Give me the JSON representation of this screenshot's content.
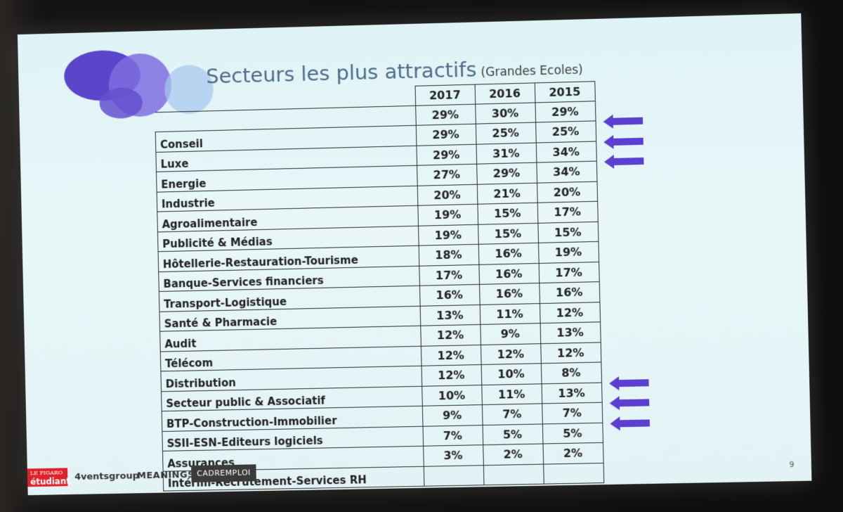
{
  "slide": {
    "title": "Secteurs les plus attractifs",
    "subtitle": "(Grandes Ecoles)",
    "page_number": "9"
  },
  "table": {
    "years": [
      "2017",
      "2016",
      "2015"
    ],
    "top_values": [
      "29%",
      "30%",
      "29%"
    ],
    "rows": [
      {
        "label": "Conseil",
        "values": [
          "29%",
          "25%",
          "25%"
        ],
        "arrow": true
      },
      {
        "label": "Luxe",
        "values": [
          "29%",
          "31%",
          "34%"
        ],
        "arrow": true
      },
      {
        "label": "Energie",
        "values": [
          "27%",
          "29%",
          "34%"
        ],
        "arrow": true
      },
      {
        "label": "Industrie",
        "values": [
          "20%",
          "21%",
          "20%"
        ],
        "arrow": false
      },
      {
        "label": "Agroalimentaire",
        "values": [
          "19%",
          "15%",
          "17%"
        ],
        "arrow": false
      },
      {
        "label": "Publicité & Médias",
        "values": [
          "19%",
          "15%",
          "15%"
        ],
        "arrow": false
      },
      {
        "label": "Hôtellerie-Restauration-Tourisme",
        "values": [
          "18%",
          "16%",
          "19%"
        ],
        "arrow": false
      },
      {
        "label": "Banque-Services financiers",
        "values": [
          "17%",
          "16%",
          "17%"
        ],
        "arrow": false
      },
      {
        "label": "Transport-Logistique",
        "values": [
          "16%",
          "16%",
          "16%"
        ],
        "arrow": false
      },
      {
        "label": "Santé & Pharmacie",
        "values": [
          "13%",
          "11%",
          "12%"
        ],
        "arrow": false
      },
      {
        "label": "Audit",
        "values": [
          "12%",
          "9%",
          "13%"
        ],
        "arrow": false
      },
      {
        "label": "Télécom",
        "values": [
          "12%",
          "12%",
          "12%"
        ],
        "arrow": false
      },
      {
        "label": "Distribution",
        "values": [
          "12%",
          "10%",
          "8%"
        ],
        "arrow": false
      },
      {
        "label": "Secteur public & Associatif",
        "values": [
          "10%",
          "11%",
          "13%"
        ],
        "arrow": true
      },
      {
        "label": "BTP-Construction-Immobilier",
        "values": [
          "9%",
          "7%",
          "7%"
        ],
        "arrow": true
      },
      {
        "label": "SSII-ESN-Editeurs logiciels",
        "values": [
          "7%",
          "5%",
          "5%"
        ],
        "arrow": true
      },
      {
        "label": "Assurances",
        "values": [
          "3%",
          "2%",
          "2%"
        ],
        "arrow": false
      },
      {
        "label": "Intérim-Recrutement-Services RH",
        "values": [
          "",
          "",
          ""
        ],
        "arrow": false
      }
    ]
  },
  "footer": {
    "figaro_line1": "LE FIGARO",
    "figaro_line2": "étudiant",
    "eventsgroup": "4ventsgroup",
    "meanings": "MEANINGS",
    "cadremploi": "CADREMPLOI"
  },
  "colors": {
    "arrow": "#5a3fd0",
    "title": "#4f6d8a",
    "slide_bg": "#e3f3f5"
  },
  "icons": {
    "arrow": "left-arrow-icon"
  }
}
